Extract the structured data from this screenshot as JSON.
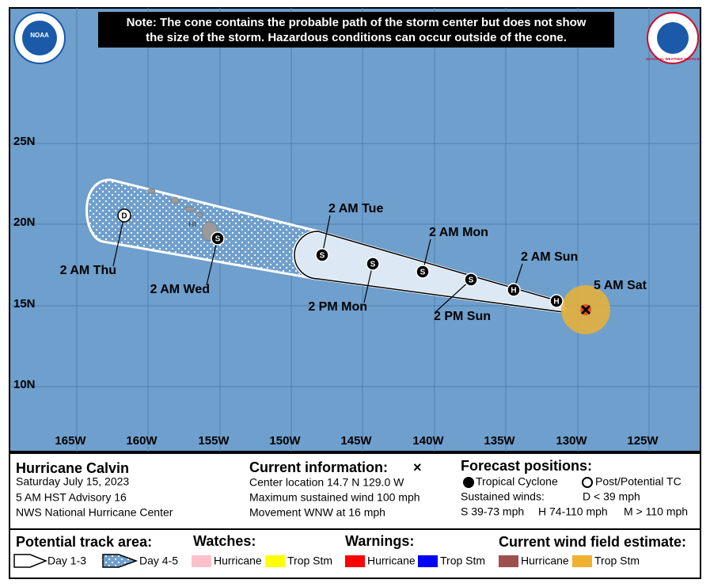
{
  "note": [
    "Note: The cone contains the probable path of the storm center but does not show",
    "the size of the storm. Hazardous conditions can occur outside of the cone."
  ],
  "logos": {
    "noaa": "NOAA",
    "nws": "NATIONAL WEATHER SERVICE"
  },
  "map": {
    "lat_labels": [
      "25N",
      "20N",
      "15N",
      "10N"
    ],
    "lon_labels": [
      "165W",
      "160W",
      "155W",
      "150W",
      "145W",
      "140W",
      "135W",
      "130W",
      "125W"
    ],
    "island_label": "HI",
    "track": [
      {
        "marker": "H"
      },
      {
        "marker": "H",
        "label": "2 AM Sun"
      },
      {
        "marker": "S",
        "label": "2 PM Sun"
      },
      {
        "marker": "S",
        "label": "2 AM Mon"
      },
      {
        "marker": "S",
        "label": "2 PM Mon"
      },
      {
        "marker": "S",
        "label": "2 AM Tue"
      },
      {
        "marker": "S",
        "label": "2 AM Wed"
      },
      {
        "marker": "D",
        "label": "2 AM Thu"
      }
    ],
    "current_label": "5 AM Sat"
  },
  "info": {
    "storm": {
      "name": "Hurricane Calvin",
      "date": "Saturday July 15, 2023",
      "advisory": "5 AM HST Advisory 16",
      "center": "NWS National Hurricane Center"
    },
    "current": {
      "title": "Current information:",
      "symbol": "×",
      "lines": [
        "Center location 14.7 N 129.0 W",
        "Maximum sustained wind 100 mph",
        "Movement WNW at 16 mph"
      ]
    },
    "forecast": {
      "title": "Forecast positions:",
      "tropical": "Tropical Cyclone",
      "post": "Post/Potential TC",
      "winds_title": "Sustained winds:",
      "d": "D < 39 mph",
      "s": "S 39-73 mph",
      "h": "H 74-110 mph",
      "m": "M > 110 mph"
    }
  },
  "legend": {
    "track": {
      "title": "Potential track area:",
      "day13": "Day 1-3",
      "day45": "Day 4-5"
    },
    "watches": {
      "title": "Watches:",
      "hurricane": "Hurricane",
      "trop": "Trop Stm"
    },
    "warnings": {
      "title": "Warnings:",
      "hurricane": "Hurricane",
      "trop": "Trop Stm"
    },
    "wind": {
      "title": "Current wind field estimate:",
      "hurricane": "Hurricane",
      "trop": "Trop Stm"
    }
  }
}
